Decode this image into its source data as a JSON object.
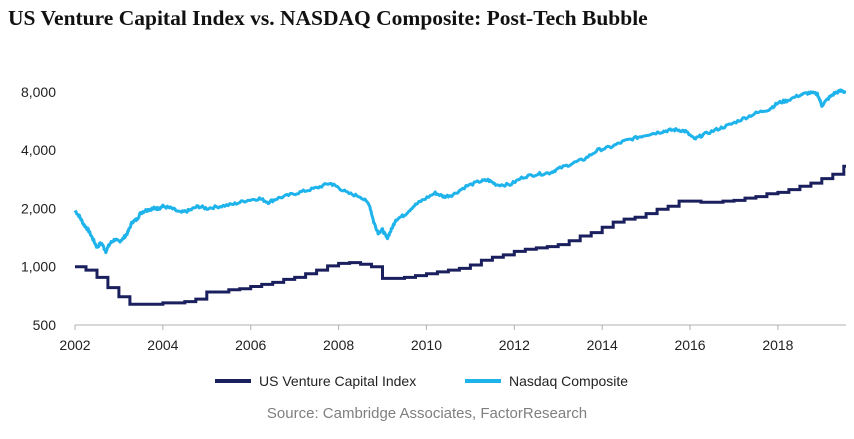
{
  "chart_data": {
    "type": "line",
    "title": "US Venture Capital Index vs. NASDAQ Composite: Post-Tech Bubble",
    "source": "Source: Cambridge Associates, FactorResearch",
    "xlabel": "",
    "ylabel": "",
    "xlim": [
      2002.0,
      2019.55
    ],
    "ylim": [
      500,
      10000
    ],
    "y_scale": "log2",
    "x_ticks": [
      2002,
      2004,
      2006,
      2008,
      2010,
      2012,
      2014,
      2016,
      2018
    ],
    "x_tick_labels": [
      "2002",
      "2004",
      "2006",
      "2008",
      "2010",
      "2012",
      "2014",
      "2016",
      "2018"
    ],
    "y_ticks": [
      500,
      1000,
      2000,
      4000,
      8000
    ],
    "y_tick_labels": [
      "500",
      "1,000",
      "2,000",
      "4,000",
      "8,000"
    ],
    "grid": false,
    "legend": "bottom",
    "series": [
      {
        "name": "US Venture Capital Index",
        "color": "#1a1f5e",
        "x": [
          2002.0,
          2002.25,
          2002.5,
          2002.75,
          2003.0,
          2003.25,
          2003.5,
          2003.75,
          2004.0,
          2004.25,
          2004.5,
          2004.75,
          2005.0,
          2005.25,
          2005.5,
          2005.75,
          2006.0,
          2006.25,
          2006.5,
          2006.75,
          2007.0,
          2007.25,
          2007.5,
          2007.75,
          2008.0,
          2008.25,
          2008.5,
          2008.75,
          2009.0,
          2009.25,
          2009.5,
          2009.75,
          2010.0,
          2010.25,
          2010.5,
          2010.75,
          2011.0,
          2011.25,
          2011.5,
          2011.75,
          2012.0,
          2012.25,
          2012.5,
          2012.75,
          2013.0,
          2013.25,
          2013.5,
          2013.75,
          2014.0,
          2014.25,
          2014.5,
          2014.75,
          2015.0,
          2015.25,
          2015.5,
          2015.75,
          2016.0,
          2016.25,
          2016.5,
          2016.75,
          2017.0,
          2017.25,
          2017.5,
          2017.75,
          2018.0,
          2018.25,
          2018.5,
          2018.75,
          2019.0,
          2019.25,
          2019.5
        ],
        "values": [
          1000,
          960,
          880,
          780,
          700,
          640,
          640,
          640,
          650,
          650,
          660,
          680,
          740,
          740,
          760,
          770,
          790,
          810,
          830,
          860,
          880,
          920,
          960,
          1010,
          1040,
          1050,
          1030,
          1000,
          870,
          870,
          880,
          900,
          920,
          940,
          960,
          980,
          1020,
          1080,
          1120,
          1150,
          1200,
          1230,
          1250,
          1270,
          1300,
          1360,
          1440,
          1500,
          1600,
          1700,
          1760,
          1800,
          1880,
          1980,
          2050,
          2180,
          2180,
          2150,
          2150,
          2180,
          2200,
          2260,
          2300,
          2380,
          2420,
          2500,
          2600,
          2700,
          2850,
          3000,
          3300
        ]
      },
      {
        "name": "Nasdaq Composite",
        "color": "#1eb3eb",
        "x": [
          2002.0,
          2002.1,
          2002.2,
          2002.3,
          2002.4,
          2002.5,
          2002.6,
          2002.7,
          2002.8,
          2002.9,
          2003.0,
          2003.1,
          2003.2,
          2003.3,
          2003.4,
          2003.5,
          2003.6,
          2003.7,
          2003.8,
          2003.9,
          2004.0,
          2004.2,
          2004.4,
          2004.6,
          2004.8,
          2005.0,
          2005.3,
          2005.6,
          2005.9,
          2006.2,
          2006.4,
          2006.6,
          2006.9,
          2007.2,
          2007.5,
          2007.8,
          2007.95,
          2008.2,
          2008.5,
          2008.7,
          2008.8,
          2008.9,
          2009.0,
          2009.1,
          2009.2,
          2009.3,
          2009.5,
          2009.7,
          2009.9,
          2010.2,
          2010.4,
          2010.6,
          2010.9,
          2011.2,
          2011.4,
          2011.6,
          2011.9,
          2012.2,
          2012.5,
          2012.8,
          2013.0,
          2013.3,
          2013.6,
          2013.9,
          2014.2,
          2014.5,
          2014.8,
          2015.0,
          2015.3,
          2015.5,
          2015.7,
          2015.9,
          2016.1,
          2016.3,
          2016.6,
          2016.9,
          2017.2,
          2017.5,
          2017.8,
          2018.0,
          2018.2,
          2018.5,
          2018.7,
          2018.9,
          2019.0,
          2019.15,
          2019.3,
          2019.45,
          2019.55
        ],
        "values": [
          1950,
          1820,
          1650,
          1550,
          1400,
          1260,
          1330,
          1200,
          1320,
          1380,
          1350,
          1400,
          1500,
          1700,
          1750,
          1900,
          1950,
          1980,
          2000,
          2000,
          2050,
          2000,
          1900,
          1950,
          2050,
          2000,
          2050,
          2100,
          2200,
          2250,
          2150,
          2250,
          2350,
          2450,
          2550,
          2700,
          2600,
          2400,
          2300,
          2100,
          1700,
          1500,
          1550,
          1400,
          1550,
          1750,
          1850,
          2050,
          2200,
          2400,
          2300,
          2350,
          2600,
          2750,
          2800,
          2650,
          2650,
          2900,
          3000,
          3050,
          3200,
          3400,
          3600,
          4000,
          4150,
          4450,
          4650,
          4800,
          4950,
          5050,
          5100,
          5000,
          4550,
          4800,
          5100,
          5400,
          5800,
          6200,
          6500,
          7000,
          7200,
          7700,
          7900,
          7800,
          6800,
          7400,
          7900,
          8100,
          7950
        ]
      }
    ]
  }
}
